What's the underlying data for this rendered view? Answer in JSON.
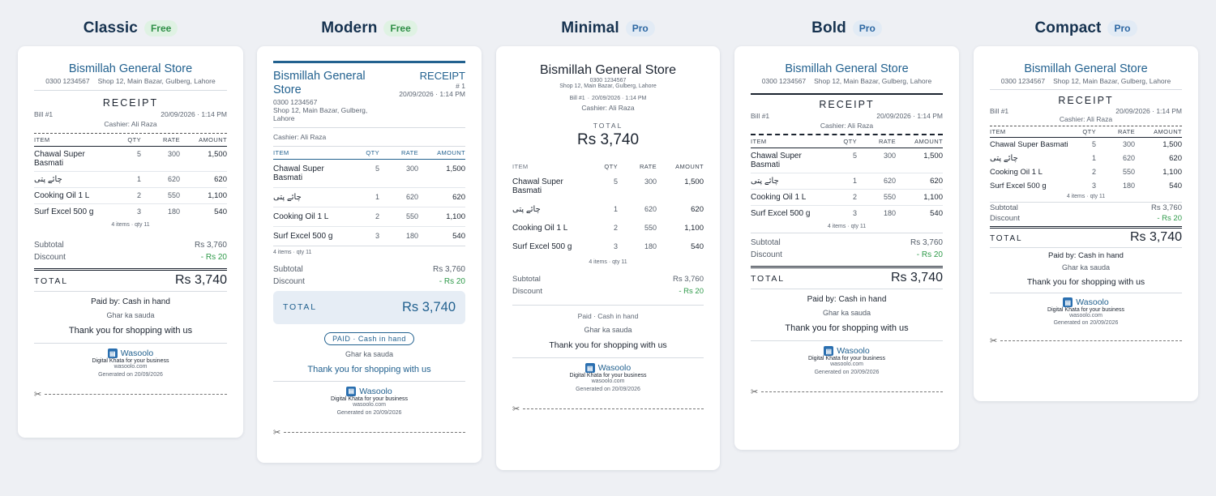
{
  "templates": [
    {
      "name": "Classic",
      "tier": "Free"
    },
    {
      "name": "Modern",
      "tier": "Free"
    },
    {
      "name": "Minimal",
      "tier": "Pro"
    },
    {
      "name": "Bold",
      "tier": "Pro"
    },
    {
      "name": "Compact",
      "tier": "Pro"
    }
  ],
  "receipt": {
    "store_name": "Bismillah General Store",
    "phone": "0300 1234567",
    "address": "Shop 12, Main Bazar, Gulberg, Lahore",
    "title": "RECEIPT",
    "bill_no": "Bill #1",
    "bill_short": "# 1",
    "datetime": "20/09/2026 · 1:14 PM",
    "cashier": "Cashier: Ali Raza",
    "headers": {
      "item": "ITEM",
      "qty": "QTY",
      "rate": "RATE",
      "amount": "AMOUNT"
    },
    "items": [
      {
        "name": "Chawal Super Basmati",
        "qty": "5",
        "rate": "300",
        "amount": "1,500"
      },
      {
        "name": "چائے پتی",
        "qty": "1",
        "rate": "620",
        "amount": "620"
      },
      {
        "name": "Cooking Oil 1 L",
        "qty": "2",
        "rate": "550",
        "amount": "1,100"
      },
      {
        "name": "Surf Excel 500 g",
        "qty": "3",
        "rate": "180",
        "amount": "540"
      }
    ],
    "items_summary": "4 items · qty 11",
    "subtotal_label": "Subtotal",
    "subtotal": "Rs 3,760",
    "discount_label": "Discount",
    "discount": "- Rs 20",
    "total_label": "TOTAL",
    "total": "Rs 3,740",
    "paid_by": "Paid by: Cash in hand",
    "paid_minimal": "Paid · Cash in hand",
    "paid_pill": "PAID · Cash in hand",
    "note": "Ghar ka sauda",
    "thanks": "Thank you for shopping with us",
    "brand": "Wasoolo",
    "brand_tagline": "Digital Khata for your business",
    "brand_url": "wasoolo.com",
    "generated": "Generated on 20/09/2026"
  },
  "icons": {
    "logo": "wasoolo-logo-icon",
    "cut": "scissors-icon"
  },
  "colors": {
    "accent": "#22618f",
    "free": "#2f8f47",
    "pro": "#2d68a3",
    "discount": "#2f9a4a"
  }
}
